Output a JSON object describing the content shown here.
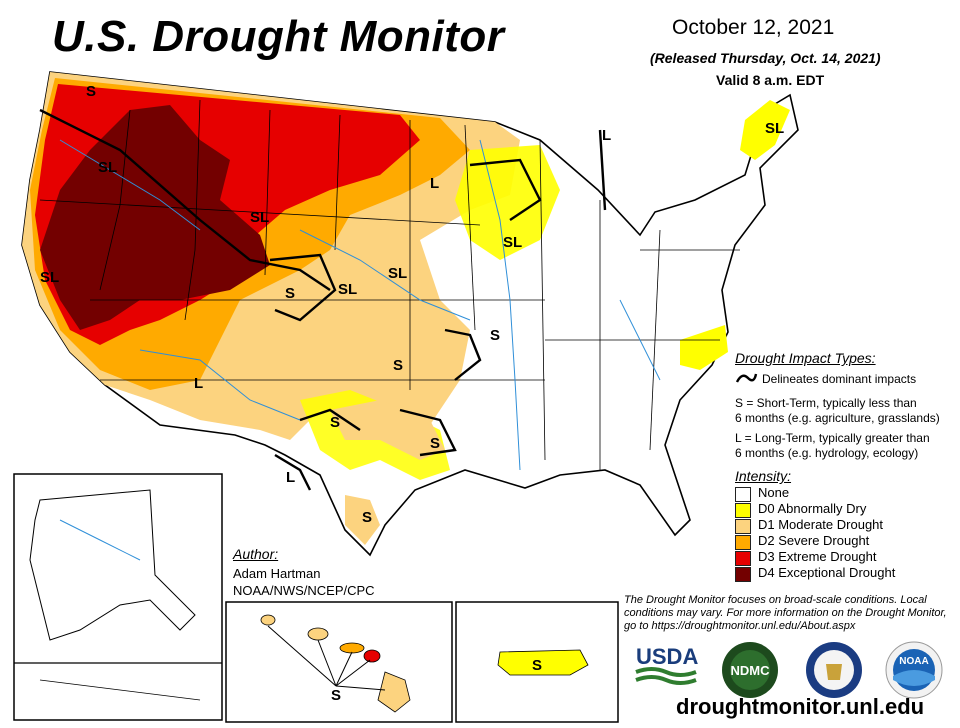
{
  "header": {
    "title": "U.S. Drought Monitor",
    "date": "October 12, 2021",
    "released": "(Released Thursday, Oct. 14, 2021)",
    "valid": "Valid 8 a.m. EDT"
  },
  "impact_legend": {
    "heading": "Drought Impact Types:",
    "line_desc": "Delineates dominant impacts",
    "short_term": "S = Short-Term, typically less than",
    "short_term_2": "6 months (e.g. agriculture, grasslands)",
    "long_term": "L = Long-Term, typically greater than",
    "long_term_2": "6 months (e.g. hydrology, ecology)"
  },
  "intensity_legend": {
    "heading": "Intensity:",
    "items": [
      {
        "label": "None",
        "color": "#ffffff"
      },
      {
        "label": "D0 Abnormally Dry",
        "color": "#ffff00"
      },
      {
        "label": "D1 Moderate Drought",
        "color": "#fcd37f"
      },
      {
        "label": "D2 Severe Drought",
        "color": "#ffaa00"
      },
      {
        "label": "D3 Extreme Drought",
        "color": "#e60000"
      },
      {
        "label": "D4 Exceptional Drought",
        "color": "#730000"
      }
    ]
  },
  "author": {
    "heading": "Author:",
    "name": "Adam Hartman",
    "org": "NOAA/NWS/NCEP/CPC"
  },
  "footnote": "The Drought Monitor focuses on broad-scale conditions. Local conditions may vary. For more information on the Drought Monitor, go to https://droughtmonitor.unl.edu/About.aspx",
  "url": "droughtmonitor.unl.edu",
  "logos": {
    "usda": "USDA",
    "ndmc": "NDMC",
    "noaa": "NOAA"
  },
  "map_labels": {
    "sl": "SL",
    "s": "S",
    "l": "L"
  }
}
